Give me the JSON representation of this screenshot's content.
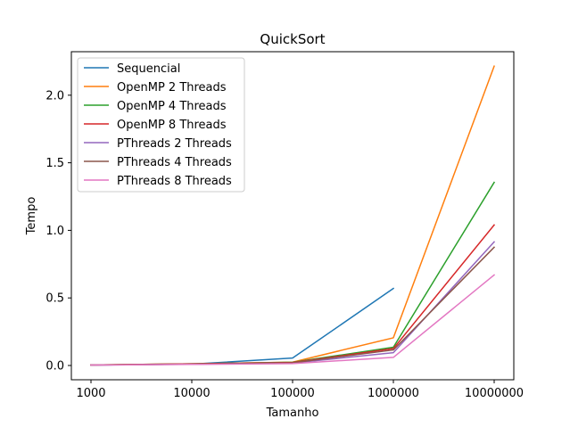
{
  "chart_data": {
    "type": "line",
    "title": "QuickSort",
    "xlabel": "Tamanho",
    "ylabel": "Tempo",
    "categories": [
      "1000",
      "10000",
      "100000",
      "1000000",
      "10000000"
    ],
    "ylim": [
      -0.1,
      2.32
    ],
    "yticks": [
      0.0,
      0.5,
      1.0,
      1.5,
      2.0
    ],
    "ytick_labels": [
      "0.0",
      "0.5",
      "1.0",
      "1.5",
      "2.0"
    ],
    "grid": false,
    "legend_position": "top-left",
    "series": [
      {
        "name": "Sequencial",
        "color": "#1f77b4",
        "values": [
          0.003,
          0.01,
          0.055,
          0.57,
          null
        ]
      },
      {
        "name": "OpenMP 2 Threads",
        "color": "#ff7f0e",
        "values": [
          0.004,
          0.012,
          0.025,
          0.205,
          2.215
        ]
      },
      {
        "name": "OpenMP 4 Threads",
        "color": "#2ca02c",
        "values": [
          0.004,
          0.012,
          0.024,
          0.135,
          1.355
        ]
      },
      {
        "name": "OpenMP 8 Threads",
        "color": "#d62728",
        "values": [
          0.004,
          0.012,
          0.022,
          0.125,
          1.04
        ]
      },
      {
        "name": "PThreads 2 Threads",
        "color": "#9467bd",
        "values": [
          0.003,
          0.009,
          0.018,
          0.095,
          0.915
        ]
      },
      {
        "name": "PThreads 4 Threads",
        "color": "#8c564b",
        "values": [
          0.003,
          0.01,
          0.02,
          0.115,
          0.875
        ]
      },
      {
        "name": "PThreads 8 Threads",
        "color": "#e377c2",
        "values": [
          0.003,
          0.008,
          0.014,
          0.06,
          0.67
        ]
      }
    ]
  }
}
